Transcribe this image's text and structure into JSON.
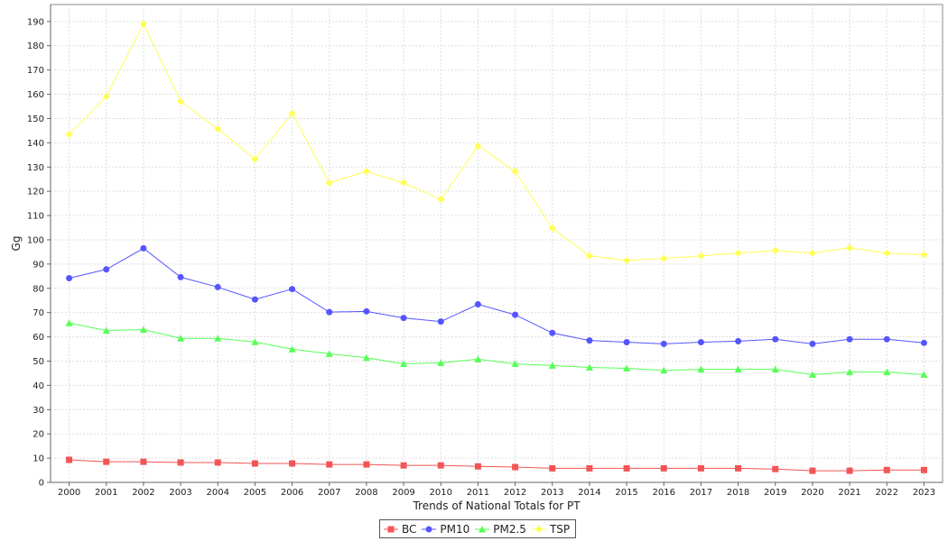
{
  "chart_data": {
    "type": "line",
    "title": "",
    "xlabel": "Trends of National Totals for PT",
    "ylabel": "Gg",
    "x": [
      "2000",
      "2001",
      "2002",
      "2003",
      "2004",
      "2005",
      "2006",
      "2007",
      "2008",
      "2009",
      "2010",
      "2011",
      "2012",
      "2013",
      "2014",
      "2015",
      "2016",
      "2017",
      "2018",
      "2019",
      "2020",
      "2021",
      "2022",
      "2023"
    ],
    "ylim": [
      0,
      197
    ],
    "yticks": [
      0,
      10,
      20,
      30,
      40,
      50,
      60,
      70,
      80,
      90,
      100,
      110,
      120,
      130,
      140,
      150,
      160,
      170,
      180,
      190
    ],
    "grid": true,
    "legend_position": "bottom",
    "series": [
      {
        "name": "BC",
        "color": "#f25555",
        "marker": "square",
        "values": [
          9.3,
          8.5,
          8.5,
          8.2,
          8.2,
          7.8,
          7.8,
          7.4,
          7.4,
          7.0,
          7.0,
          6.6,
          6.3,
          5.8,
          5.8,
          5.8,
          5.8,
          5.8,
          5.8,
          5.5,
          4.8,
          4.8,
          5.1,
          5.1
        ]
      },
      {
        "name": "PM10",
        "color": "#5555ff",
        "marker": "circle",
        "values": [
          84.2,
          87.8,
          96.5,
          84.6,
          80.5,
          75.4,
          79.7,
          70.2,
          70.5,
          67.8,
          66.3,
          73.4,
          69.1,
          61.6,
          58.5,
          57.8,
          57.1,
          57.8,
          58.2,
          59.0,
          57.1,
          59.0,
          59.0,
          57.5
        ]
      },
      {
        "name": "PM2.5",
        "color": "#55ff55",
        "marker": "triangle",
        "values": [
          65.7,
          62.6,
          63.0,
          59.4,
          59.4,
          57.9,
          54.9,
          53.0,
          51.4,
          48.9,
          49.3,
          50.8,
          48.9,
          48.2,
          47.4,
          47.0,
          46.2,
          46.6,
          46.6,
          46.6,
          44.4,
          45.5,
          45.5,
          44.4
        ]
      },
      {
        "name": "TSP",
        "color": "#ffff55",
        "marker": "diamond",
        "values": [
          143.5,
          159.1,
          189.0,
          157.1,
          145.7,
          133.2,
          152.1,
          123.5,
          128.2,
          123.5,
          116.7,
          138.7,
          128.2,
          104.8,
          93.4,
          91.5,
          92.3,
          93.4,
          94.5,
          95.6,
          94.5,
          96.7,
          94.5,
          93.8
        ]
      }
    ]
  }
}
